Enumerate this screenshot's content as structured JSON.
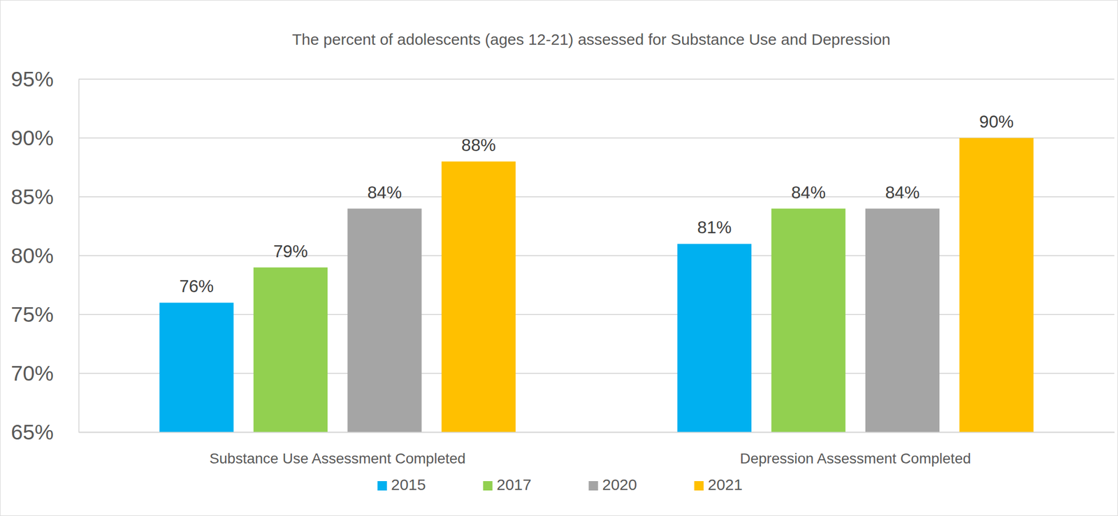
{
  "chart_data": {
    "type": "bar",
    "title": "The percent of adolescents (ages 12-21) assessed for Substance Use and Depression",
    "categories": [
      "Substance Use Assessment Completed",
      "Depression Assessment Completed"
    ],
    "series": [
      {
        "name": "2015",
        "color": "#00b0f0",
        "values": [
          76,
          81
        ],
        "value_labels": [
          "76%",
          "81%"
        ]
      },
      {
        "name": "2017",
        "color": "#92d050",
        "values": [
          79,
          84
        ],
        "value_labels": [
          "79%",
          "84%"
        ]
      },
      {
        "name": "2020",
        "color": "#a5a5a5",
        "values": [
          84,
          84
        ],
        "value_labels": [
          "84%",
          "84%"
        ]
      },
      {
        "name": "2021",
        "color": "#ffc000",
        "values": [
          88,
          90
        ],
        "value_labels": [
          "88%",
          "90%"
        ]
      }
    ],
    "ylim": [
      65,
      95
    ],
    "yticks": [
      {
        "value": 65,
        "label": "65%"
      },
      {
        "value": 70,
        "label": "70%"
      },
      {
        "value": 75,
        "label": "75%"
      },
      {
        "value": 80,
        "label": "80%"
      },
      {
        "value": 85,
        "label": "85%"
      },
      {
        "value": 90,
        "label": "90%"
      },
      {
        "value": 95,
        "label": "95%"
      }
    ],
    "grid": true,
    "data_labels": true,
    "legend": "bottom"
  }
}
